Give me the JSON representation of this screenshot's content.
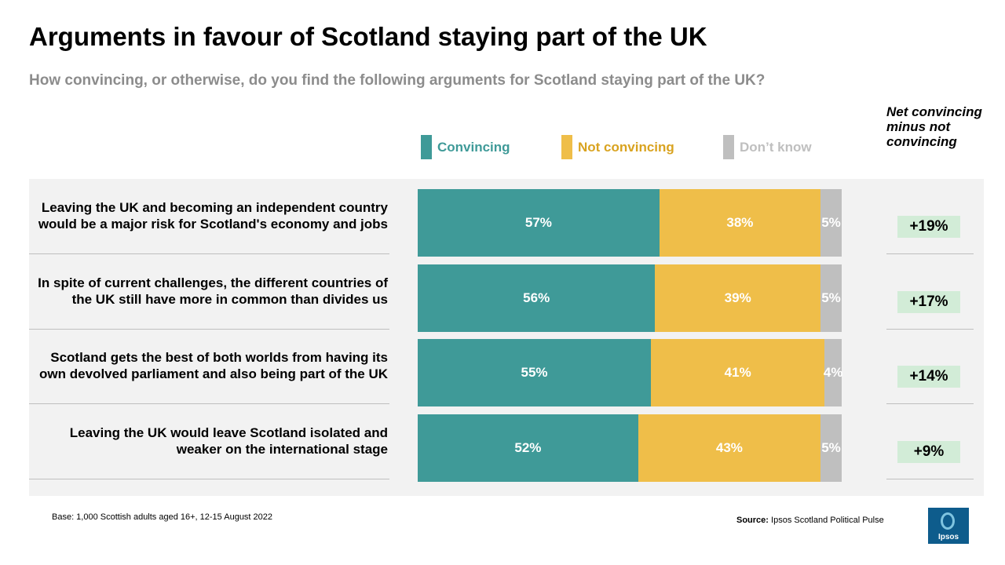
{
  "title": "Arguments in favour of Scotland staying part of the UK",
  "subtitle": "How convincing, or otherwise, do you find the following arguments for Scotland staying part of the UK?",
  "net_header": "Net convincing minus not convincing",
  "colors": {
    "convincing": "#3f9a98",
    "not_convincing": "#efbe49",
    "dont_know": "#bfbfbf",
    "net_badge": "#d2ecd7",
    "panel": "#f2f2f2"
  },
  "footer": {
    "base": "Base: 1,000 Scottish adults aged 16+, 12-15 August 2022",
    "source_label": "Source:",
    "source_text": "Ipsos Scotland Political Pulse",
    "logo_text": "Ipsos"
  },
  "chart_data": {
    "type": "bar",
    "orientation": "horizontal",
    "stacked": true,
    "legend_placement": "top",
    "categories": [
      "Leaving the UK and becoming an independent country would be a major risk for Scotland's economy and jobs",
      "In spite of current challenges, the different countries of the UK still have more in common than divides us",
      "Scotland gets the best of both worlds from having its own devolved parliament and also being part of the UK",
      "Leaving the UK would leave Scotland isolated and weaker on the international stage"
    ],
    "series": [
      {
        "name": "Convincing",
        "color_key": "convincing",
        "values": [
          57,
          56,
          55,
          52
        ],
        "labels": [
          "57%",
          "56%",
          "55%",
          "52%"
        ]
      },
      {
        "name": "Not convincing",
        "color_key": "not_convincing",
        "values": [
          38,
          39,
          41,
          43
        ],
        "labels": [
          "38%",
          "39%",
          "41%",
          "43%"
        ]
      },
      {
        "name": "Don’t know",
        "color_key": "dont_know",
        "values": [
          5,
          5,
          4,
          5
        ],
        "labels": [
          "5%",
          "5%",
          "4%",
          "5%"
        ]
      }
    ],
    "net": [
      "+19%",
      "+17%",
      "+14%",
      "+9%"
    ],
    "xlim": [
      0,
      100
    ]
  }
}
